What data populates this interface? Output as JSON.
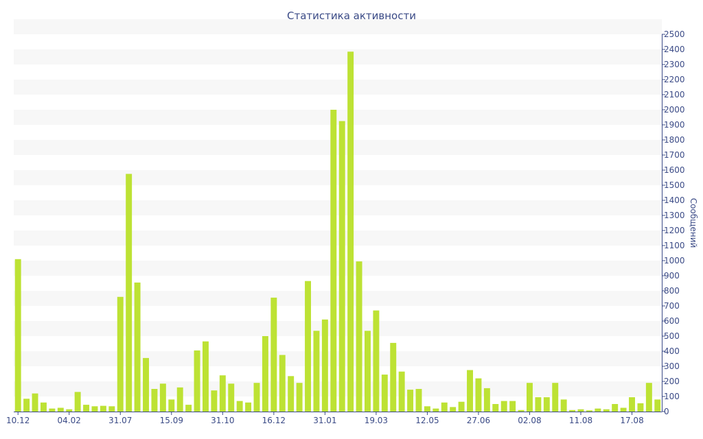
{
  "chart_data": {
    "type": "bar",
    "title": "Статистика активности",
    "xlabel": "",
    "ylabel": "Сообщений",
    "ylim": [
      0,
      2500
    ],
    "y_axis_position": "right",
    "y_ticks": [
      0,
      100,
      200,
      300,
      400,
      500,
      600,
      700,
      800,
      900,
      1000,
      1100,
      1200,
      1300,
      1400,
      1500,
      1600,
      1700,
      1800,
      1900,
      2000,
      2100,
      2200,
      2300,
      2400,
      2500
    ],
    "x_tick_labels": [
      {
        "label": "10.12",
        "index": 0
      },
      {
        "label": "04.02",
        "index": 6
      },
      {
        "label": "31.07",
        "index": 12
      },
      {
        "label": "15.09",
        "index": 18
      },
      {
        "label": "31.10",
        "index": 24
      },
      {
        "label": "16.12",
        "index": 30
      },
      {
        "label": "31.01",
        "index": 36
      },
      {
        "label": "19.03",
        "index": 42
      },
      {
        "label": "12.05",
        "index": 48
      },
      {
        "label": "27.06",
        "index": 54
      },
      {
        "label": "02.08",
        "index": 60
      },
      {
        "label": "11.08",
        "index": 66
      },
      {
        "label": "17.08",
        "index": 72
      }
    ],
    "values": [
      1010,
      85,
      120,
      60,
      20,
      25,
      15,
      130,
      45,
      35,
      38,
      35,
      760,
      1575,
      855,
      355,
      150,
      185,
      80,
      160,
      45,
      405,
      465,
      140,
      240,
      185,
      70,
      60,
      190,
      500,
      755,
      375,
      235,
      190,
      865,
      535,
      610,
      2000,
      1925,
      2385,
      995,
      535,
      670,
      245,
      455,
      265,
      145,
      150,
      35,
      20,
      60,
      30,
      65,
      275,
      220,
      155,
      50,
      70,
      70,
      10,
      190,
      95,
      95,
      190,
      80,
      10,
      15,
      8,
      20,
      15,
      50,
      25,
      95,
      55,
      190,
      80
    ],
    "grid": "horizontal bands",
    "legend": "none",
    "colors": {
      "bar": "#bde234",
      "band": "#f7f7f7",
      "axis": "#3a4a86",
      "text": "#3a4a86"
    }
  }
}
